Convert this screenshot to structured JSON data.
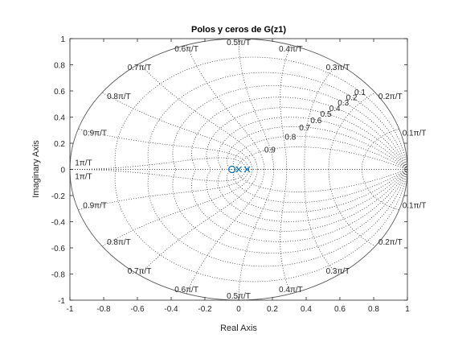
{
  "chart_data": {
    "type": "scatter",
    "title": "Polos y ceros de G(z1)",
    "xlabel": "Real Axis",
    "ylabel": "Imaginary Axis",
    "xlim": [
      -1,
      1
    ],
    "ylim": [
      -1,
      1
    ],
    "x_ticks": [
      "-1",
      "-0.8",
      "-0.6",
      "-0.4",
      "-0.2",
      "0",
      "0.2",
      "0.4",
      "0.6",
      "0.8",
      "1"
    ],
    "y_ticks": [
      "1",
      "0.8",
      "0.6",
      "0.4",
      "0.2",
      "0",
      "-0.2",
      "-0.4",
      "-0.6",
      "-0.8",
      "-1"
    ],
    "grid": "zgrid",
    "unit_circle": true,
    "damping_labels": [
      "0.1",
      "0.2",
      "0.3",
      "0.4",
      "0.5",
      "0.6",
      "0.7",
      "0.8",
      "0.9"
    ],
    "freq_labels": [
      "0.1π/T",
      "0.2π/T",
      "0.3π/T",
      "0.4π/T",
      "0.5π/T",
      "0.6π/T",
      "0.7π/T",
      "0.8π/T",
      "0.9π/T",
      "1π/T"
    ],
    "poles": [
      {
        "x": 0.0,
        "y": 0
      },
      {
        "x": 0.05,
        "y": 0
      }
    ],
    "zeros": [
      {
        "x": -0.04,
        "y": 0
      }
    ],
    "series_color": "#0072BD"
  }
}
